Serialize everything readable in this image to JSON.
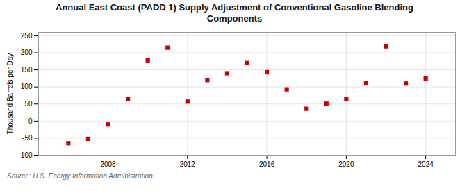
{
  "chart_data": {
    "type": "scatter",
    "title": "Annual East Coast (PADD 1) Supply Adjustment of Conventional Gasoline Blending\nComponents",
    "ylabel": "Thousand Barrels per Day",
    "source": "Source: U.S. Energy Information Administration",
    "x": [
      2006,
      2007,
      2008,
      2009,
      2010,
      2011,
      2012,
      2013,
      2014,
      2015,
      2016,
      2017,
      2018,
      2019,
      2020,
      2021,
      2022,
      2023,
      2024
    ],
    "values": [
      -65,
      -52,
      -10,
      65,
      178,
      215,
      57,
      120,
      140,
      170,
      143,
      93,
      36,
      51,
      65,
      112,
      219,
      110,
      125
    ],
    "color": "#cc0000",
    "marker": "square",
    "xlim": [
      2004.5,
      2025.5
    ],
    "xticks": [
      2008,
      2012,
      2016,
      2020,
      2024
    ],
    "ylim": [
      -100,
      260
    ],
    "yticks": [
      -100,
      -50,
      0,
      50,
      100,
      150,
      200,
      250
    ],
    "grid": true
  }
}
